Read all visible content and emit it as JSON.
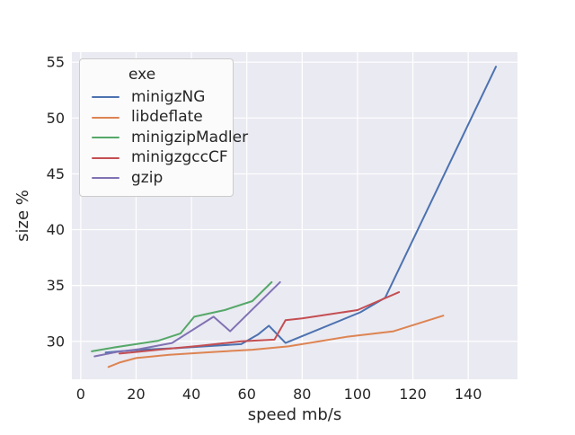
{
  "chart_data": {
    "type": "line",
    "title": "",
    "xlabel": "speed mb/s",
    "ylabel": "size %",
    "legend_title": "exe",
    "legend_position": "upper left",
    "grid": true,
    "xlim": [
      -3.2,
      157.8
    ],
    "ylim": [
      26.6,
      55.9
    ],
    "xticks": [
      0,
      20,
      40,
      60,
      80,
      100,
      120,
      140
    ],
    "yticks": [
      30,
      35,
      40,
      45,
      50,
      55
    ],
    "series": [
      {
        "name": "minigzNG",
        "color": "#4c72b0",
        "points": [
          [
            9,
            29.0
          ],
          [
            14,
            29.1
          ],
          [
            22,
            29.25
          ],
          [
            35,
            29.4
          ],
          [
            48,
            29.6
          ],
          [
            58,
            29.75
          ],
          [
            64,
            30.6
          ],
          [
            68,
            31.4
          ],
          [
            74,
            29.85
          ],
          [
            101,
            32.6
          ],
          [
            110,
            33.9
          ],
          [
            150,
            54.6
          ]
        ]
      },
      {
        "name": "libdeflate",
        "color": "#dd8452",
        "points": [
          [
            10,
            27.7
          ],
          [
            14,
            28.1
          ],
          [
            20,
            28.5
          ],
          [
            32,
            28.8
          ],
          [
            48,
            29.05
          ],
          [
            62,
            29.25
          ],
          [
            75,
            29.55
          ],
          [
            96,
            30.4
          ],
          [
            113,
            30.9
          ],
          [
            131,
            32.3
          ]
        ]
      },
      {
        "name": "minigzipMadler",
        "color": "#55a868",
        "points": [
          [
            4,
            29.1
          ],
          [
            12,
            29.45
          ],
          [
            20,
            29.75
          ],
          [
            28,
            30.05
          ],
          [
            36,
            30.7
          ],
          [
            41,
            32.2
          ],
          [
            52,
            32.8
          ],
          [
            62,
            33.6
          ],
          [
            69,
            35.3
          ]
        ]
      },
      {
        "name": "minigzgccCF",
        "color": "#c44e52",
        "points": [
          [
            14,
            28.9
          ],
          [
            20,
            29.05
          ],
          [
            30,
            29.3
          ],
          [
            43,
            29.6
          ],
          [
            58,
            30.0
          ],
          [
            70,
            30.15
          ],
          [
            74,
            31.9
          ],
          [
            80,
            32.05
          ],
          [
            100,
            32.8
          ],
          [
            115,
            34.4
          ]
        ]
      },
      {
        "name": "gzip",
        "color": "#8172b3",
        "points": [
          [
            5,
            28.65
          ],
          [
            13,
            29.05
          ],
          [
            21,
            29.3
          ],
          [
            33,
            29.85
          ],
          [
            48,
            32.2
          ],
          [
            54,
            30.9
          ],
          [
            72,
            35.3
          ]
        ]
      }
    ],
    "colors": {
      "plot_bg": "#eaeaf2",
      "grid": "#ffffff",
      "text": "#262626",
      "legend_bg": "#fbfbfc",
      "legend_border": "#cccccc"
    }
  }
}
